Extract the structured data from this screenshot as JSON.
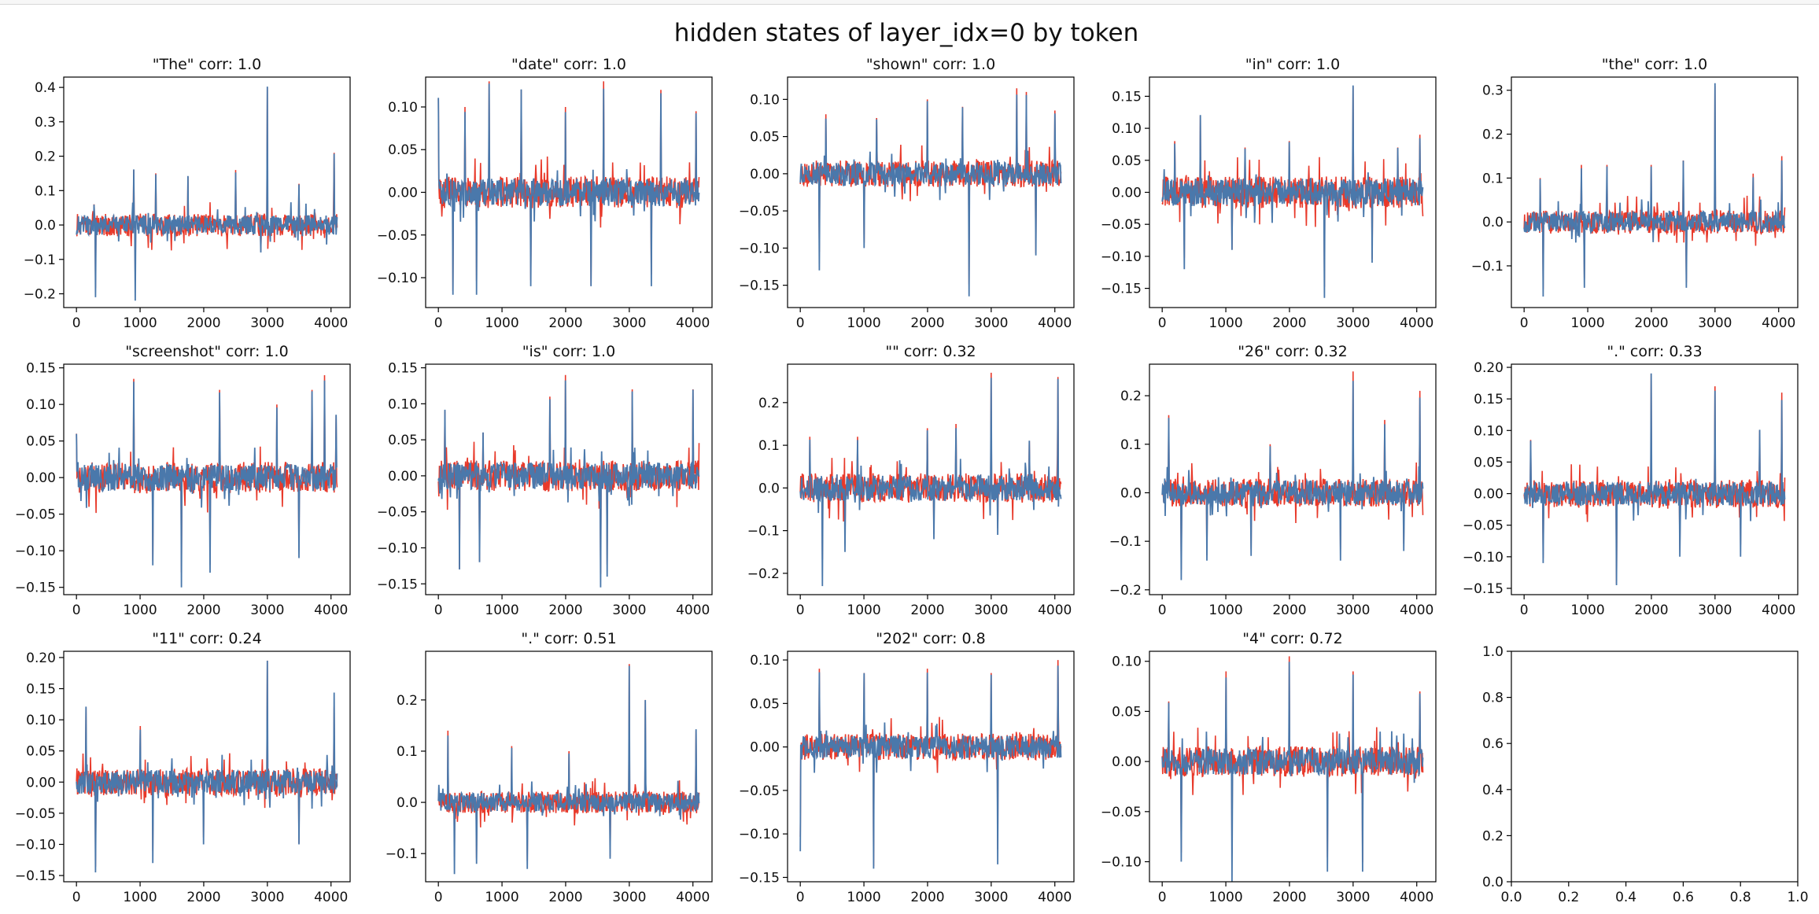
{
  "chart_data": {
    "type": "line",
    "title": "hidden states of layer_idx=0 by token",
    "series_colors": [
      "#e8392a",
      "#4a78ab"
    ],
    "x_ticks": [
      0,
      1000,
      2000,
      3000,
      4000
    ],
    "xlim": [
      -200,
      4300
    ],
    "panels": [
      {
        "title": "\"The\" corr: 1.0",
        "ylim": [
          -0.24,
          0.43
        ],
        "yticks": [
          -0.2,
          -0.1,
          0.0,
          0.1,
          0.2,
          0.3,
          0.4
        ],
        "ytick_labels": [
          "−0.2",
          "−0.1",
          "0.0",
          "0.1",
          "0.2",
          "0.3",
          "0.4"
        ],
        "red_peak": 0.4,
        "blue_peak": 0.39,
        "red_trough": -0.2,
        "blue_trough": -0.22,
        "spikes_up": [
          [
            280,
            0.06
          ],
          [
            900,
            0.16
          ],
          [
            1250,
            0.15
          ],
          [
            1750,
            0.14
          ],
          [
            2500,
            0.16
          ],
          [
            3000,
            0.4
          ],
          [
            3500,
            0.12
          ],
          [
            4050,
            0.21
          ]
        ],
        "spikes_down": [
          [
            300,
            -0.21
          ],
          [
            920,
            -0.22
          ],
          [
            2900,
            -0.08
          ]
        ]
      },
      {
        "title": "\"date\" corr: 1.0",
        "ylim": [
          -0.135,
          0.135
        ],
        "yticks": [
          -0.1,
          -0.05,
          0.0,
          0.05,
          0.1
        ],
        "ytick_labels": [
          "−0.10",
          "−0.05",
          "0.00",
          "0.05",
          "0.10"
        ],
        "red_peak": 0.125,
        "blue_peak": 0.12,
        "red_trough": -0.12,
        "blue_trough": -0.125,
        "spikes_up": [
          [
            0,
            0.11
          ],
          [
            420,
            0.1
          ],
          [
            800,
            0.13
          ],
          [
            1300,
            0.12
          ],
          [
            2000,
            0.1
          ],
          [
            2600,
            0.13
          ],
          [
            3500,
            0.12
          ],
          [
            4050,
            0.095
          ]
        ],
        "spikes_down": [
          [
            230,
            -0.12
          ],
          [
            600,
            -0.12
          ],
          [
            1450,
            -0.11
          ],
          [
            2400,
            -0.11
          ],
          [
            3350,
            -0.11
          ]
        ]
      },
      {
        "title": "\"shown\" corr: 1.0",
        "ylim": [
          -0.18,
          0.13
        ],
        "yticks": [
          -0.15,
          -0.1,
          -0.05,
          0.0,
          0.05,
          0.1
        ],
        "ytick_labels": [
          "−0.15",
          "−0.10",
          "−0.05",
          "0.00",
          "0.05",
          "0.10"
        ],
        "red_peak": 0.115,
        "blue_peak": 0.11,
        "red_trough": -0.16,
        "blue_trough": -0.165,
        "spikes_up": [
          [
            400,
            0.08
          ],
          [
            1200,
            0.075
          ],
          [
            2000,
            0.1
          ],
          [
            2550,
            0.09
          ],
          [
            3400,
            0.115
          ],
          [
            3550,
            0.11
          ],
          [
            4000,
            0.085
          ]
        ],
        "spikes_down": [
          [
            300,
            -0.13
          ],
          [
            1000,
            -0.1
          ],
          [
            2650,
            -0.165
          ],
          [
            3700,
            -0.11
          ]
        ]
      },
      {
        "title": "\"in\" corr: 1.0",
        "ylim": [
          -0.18,
          0.18
        ],
        "yticks": [
          -0.15,
          -0.1,
          -0.05,
          0.0,
          0.05,
          0.1,
          0.15
        ],
        "ytick_labels": [
          "−0.15",
          "−0.10",
          "−0.05",
          "0.00",
          "0.05",
          "0.10",
          "0.15"
        ],
        "red_peak": 0.165,
        "blue_peak": 0.16,
        "red_trough": -0.16,
        "blue_trough": -0.165,
        "spikes_up": [
          [
            200,
            0.08
          ],
          [
            600,
            0.12
          ],
          [
            1300,
            0.07
          ],
          [
            2000,
            0.08
          ],
          [
            3000,
            0.165
          ],
          [
            3700,
            0.07
          ],
          [
            4050,
            0.09
          ]
        ],
        "spikes_down": [
          [
            350,
            -0.12
          ],
          [
            1100,
            -0.09
          ],
          [
            2550,
            -0.165
          ],
          [
            3300,
            -0.11
          ]
        ]
      },
      {
        "title": "\"the\" corr: 1.0",
        "ylim": [
          -0.195,
          0.33
        ],
        "yticks": [
          -0.1,
          0.0,
          0.1,
          0.2,
          0.3
        ],
        "ytick_labels": [
          "−0.1",
          "0.0",
          "0.1",
          "0.2",
          "0.3"
        ],
        "red_peak": 0.31,
        "blue_peak": 0.3,
        "red_trough": -0.17,
        "blue_trough": -0.175,
        "spikes_up": [
          [
            250,
            0.1
          ],
          [
            900,
            0.13
          ],
          [
            1300,
            0.13
          ],
          [
            2000,
            0.13
          ],
          [
            2500,
            0.14
          ],
          [
            3000,
            0.31
          ],
          [
            3600,
            0.11
          ],
          [
            4050,
            0.15
          ]
        ],
        "spikes_down": [
          [
            300,
            -0.17
          ],
          [
            950,
            -0.15
          ],
          [
            2550,
            -0.15
          ]
        ]
      },
      {
        "title": "\"screenshot\" corr: 1.0",
        "ylim": [
          -0.16,
          0.155
        ],
        "yticks": [
          -0.15,
          -0.1,
          -0.05,
          0.0,
          0.05,
          0.1,
          0.15
        ],
        "ytick_labels": [
          "−0.15",
          "−0.10",
          "−0.05",
          "0.00",
          "0.05",
          "0.10",
          "0.15"
        ],
        "red_peak": 0.14,
        "blue_peak": 0.13,
        "red_trough": -0.14,
        "blue_trough": -0.15,
        "spikes_up": [
          [
            0,
            0.06
          ],
          [
            900,
            0.135
          ],
          [
            2250,
            0.12
          ],
          [
            3150,
            0.1
          ],
          [
            3700,
            0.12
          ],
          [
            3900,
            0.14
          ],
          [
            4080,
            0.085
          ]
        ],
        "spikes_down": [
          [
            1200,
            -0.12
          ],
          [
            1650,
            -0.15
          ],
          [
            2100,
            -0.13
          ],
          [
            3500,
            -0.11
          ]
        ]
      },
      {
        "title": "\"is\" corr: 1.0",
        "ylim": [
          -0.165,
          0.155
        ],
        "yticks": [
          -0.15,
          -0.1,
          -0.05,
          0.0,
          0.05,
          0.1,
          0.15
        ],
        "ytick_labels": [
          "−0.15",
          "−0.10",
          "−0.05",
          "0.00",
          "0.05",
          "0.10",
          "0.15"
        ],
        "red_peak": 0.145,
        "blue_peak": 0.14,
        "red_trough": -0.15,
        "blue_trough": -0.155,
        "spikes_up": [
          [
            100,
            0.09
          ],
          [
            700,
            0.06
          ],
          [
            1750,
            0.11
          ],
          [
            2000,
            0.14
          ],
          [
            2650,
            0.12
          ],
          [
            3050,
            0.12
          ],
          [
            4000,
            0.12
          ]
        ],
        "spikes_down": [
          [
            330,
            -0.13
          ],
          [
            650,
            -0.12
          ],
          [
            2550,
            -0.155
          ],
          [
            2650,
            -0.14
          ]
        ]
      },
      {
        "title": "\"\" corr: 0.32",
        "ylim": [
          -0.25,
          0.29
        ],
        "yticks": [
          -0.2,
          -0.1,
          0.0,
          0.1,
          0.2
        ],
        "ytick_labels": [
          "−0.2",
          "−0.1",
          "0.0",
          "0.1",
          "0.2"
        ],
        "red_peak": 0.27,
        "blue_peak": 0.26,
        "red_trough": -0.2,
        "blue_trough": -0.23,
        "spikes_up": [
          [
            150,
            0.12
          ],
          [
            900,
            0.12
          ],
          [
            2000,
            0.14
          ],
          [
            2450,
            0.15
          ],
          [
            3000,
            0.27
          ],
          [
            3600,
            0.11
          ],
          [
            4050,
            0.26
          ]
        ],
        "spikes_down": [
          [
            350,
            -0.23
          ],
          [
            700,
            -0.15
          ],
          [
            2100,
            -0.12
          ],
          [
            3100,
            -0.11
          ]
        ]
      },
      {
        "title": "\"26\" corr: 0.32",
        "ylim": [
          -0.21,
          0.265
        ],
        "yticks": [
          -0.2,
          -0.1,
          0.0,
          0.1,
          0.2
        ],
        "ytick_labels": [
          "−0.2",
          "−0.1",
          "0.0",
          "0.1",
          "0.2"
        ],
        "red_peak": 0.21,
        "blue_peak": 0.25,
        "red_trough": -0.18,
        "blue_trough": -0.17,
        "spikes_up": [
          [
            100,
            0.16
          ],
          [
            700,
            0.12
          ],
          [
            1700,
            0.1
          ],
          [
            3000,
            0.25
          ],
          [
            3500,
            0.15
          ],
          [
            4050,
            0.21
          ]
        ],
        "spikes_down": [
          [
            300,
            -0.18
          ],
          [
            700,
            -0.14
          ],
          [
            1400,
            -0.13
          ],
          [
            2800,
            -0.14
          ],
          [
            3800,
            -0.12
          ]
        ]
      },
      {
        "title": "\".\" corr: 0.33",
        "ylim": [
          -0.16,
          0.205
        ],
        "yticks": [
          -0.15,
          -0.1,
          -0.05,
          0.0,
          0.05,
          0.1,
          0.15,
          0.2
        ],
        "ytick_labels": [
          "−0.15",
          "−0.10",
          "−0.05",
          "0.00",
          "0.05",
          "0.10",
          "0.15",
          "0.20"
        ],
        "red_peak": 0.17,
        "blue_peak": 0.19,
        "red_trough": -0.145,
        "blue_trough": -0.13,
        "spikes_up": [
          [
            100,
            0.085
          ],
          [
            2000,
            0.19
          ],
          [
            3000,
            0.17
          ],
          [
            3700,
            0.1
          ],
          [
            4050,
            0.16
          ]
        ],
        "spikes_down": [
          [
            300,
            -0.11
          ],
          [
            1450,
            -0.145
          ],
          [
            2450,
            -0.1
          ],
          [
            3400,
            -0.1
          ]
        ]
      },
      {
        "title": "\"11\" corr: 0.24",
        "ylim": [
          -0.16,
          0.21
        ],
        "yticks": [
          -0.15,
          -0.1,
          -0.05,
          0.0,
          0.05,
          0.1,
          0.15,
          0.2
        ],
        "ytick_labels": [
          "−0.15",
          "−0.10",
          "−0.05",
          "0.00",
          "0.05",
          "0.10",
          "0.15",
          "0.20"
        ],
        "red_peak": 0.12,
        "blue_peak": 0.195,
        "red_trough": -0.14,
        "blue_trough": -0.145,
        "spikes_up": [
          [
            150,
            0.12
          ],
          [
            1000,
            0.09
          ],
          [
            2000,
            0.1
          ],
          [
            3000,
            0.195
          ],
          [
            3500,
            0.07
          ],
          [
            4050,
            0.145
          ]
        ],
        "spikes_down": [
          [
            300,
            -0.145
          ],
          [
            1200,
            -0.13
          ],
          [
            2000,
            -0.1
          ],
          [
            3500,
            -0.1
          ]
        ]
      },
      {
        "title": "\".\" corr: 0.51",
        "ylim": [
          -0.155,
          0.295
        ],
        "yticks": [
          -0.1,
          0.0,
          0.1,
          0.2
        ],
        "ytick_labels": [
          "−0.1",
          "0.0",
          "0.1",
          "0.2"
        ],
        "red_peak": 0.2,
        "blue_peak": 0.27,
        "red_trough": -0.13,
        "blue_trough": -0.14,
        "spikes_up": [
          [
            150,
            0.14
          ],
          [
            1150,
            0.11
          ],
          [
            2050,
            0.1
          ],
          [
            3000,
            0.27
          ],
          [
            3250,
            0.2
          ],
          [
            4050,
            0.14
          ]
        ],
        "spikes_down": [
          [
            250,
            -0.14
          ],
          [
            600,
            -0.12
          ],
          [
            1400,
            -0.13
          ],
          [
            2700,
            -0.11
          ]
        ]
      },
      {
        "title": "\"202\" corr: 0.8",
        "ylim": [
          -0.155,
          0.11
        ],
        "yticks": [
          -0.15,
          -0.1,
          -0.05,
          0.0,
          0.05,
          0.1
        ],
        "ytick_labels": [
          "−0.15",
          "−0.10",
          "−0.05",
          "0.00",
          "0.05",
          "0.10"
        ],
        "red_peak": 0.1,
        "blue_peak": 0.095,
        "red_trough": -0.14,
        "blue_trough": -0.14,
        "spikes_up": [
          [
            300,
            0.09
          ],
          [
            1000,
            0.085
          ],
          [
            2000,
            0.09
          ],
          [
            3000,
            0.085
          ],
          [
            4050,
            0.1
          ]
        ],
        "spikes_down": [
          [
            0,
            -0.12
          ],
          [
            1150,
            -0.14
          ],
          [
            3100,
            -0.135
          ]
        ]
      },
      {
        "title": "\"4\" corr: 0.72",
        "ylim": [
          -0.12,
          0.11
        ],
        "yticks": [
          -0.1,
          -0.05,
          0.0,
          0.05,
          0.1
        ],
        "ytick_labels": [
          "−0.10",
          "−0.05",
          "0.00",
          "0.05",
          "0.10"
        ],
        "red_peak": 0.09,
        "blue_peak": 0.105,
        "red_trough": -0.11,
        "blue_trough": -0.12,
        "spikes_up": [
          [
            100,
            0.06
          ],
          [
            1000,
            0.09
          ],
          [
            2000,
            0.105
          ],
          [
            3000,
            0.09
          ],
          [
            4050,
            0.07
          ]
        ],
        "spikes_down": [
          [
            300,
            -0.1
          ],
          [
            1100,
            -0.12
          ],
          [
            2600,
            -0.11
          ],
          [
            3150,
            -0.11
          ]
        ]
      },
      {
        "title": "",
        "empty": true,
        "ylim": [
          0.0,
          1.0
        ],
        "xlim": [
          0.0,
          1.0
        ],
        "yticks": [
          0.0,
          0.2,
          0.4,
          0.6,
          0.8,
          1.0
        ],
        "ytick_labels": [
          "0.0",
          "0.2",
          "0.4",
          "0.6",
          "0.8",
          "1.0"
        ],
        "xticks": [
          0.0,
          0.2,
          0.4,
          0.6,
          0.8,
          1.0
        ],
        "xtick_labels": [
          "0.0",
          "0.2",
          "0.4",
          "0.6",
          "0.8",
          "1.0"
        ]
      }
    ]
  }
}
